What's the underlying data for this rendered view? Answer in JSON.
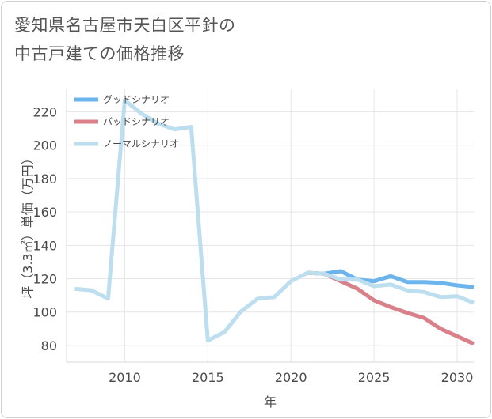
{
  "title": {
    "line1": "愛知県名古屋市天白区平針の",
    "line2": "中古戸建ての価格推移"
  },
  "chart_data": {
    "type": "line",
    "xlabel": "年",
    "ylabel": "坪（3.3㎡）単価（万円）",
    "xlim": [
      2006.5,
      2031
    ],
    "ylim": [
      70,
      234
    ],
    "xticks": [
      2010,
      2015,
      2020,
      2025,
      2030
    ],
    "yticks": [
      80,
      100,
      120,
      140,
      160,
      180,
      200,
      220
    ],
    "legend_position": "top-left",
    "series": [
      {
        "name": "グッドシナリオ",
        "color": "#6cb4ec",
        "x": [
          2021,
          2022,
          2023,
          2024,
          2025,
          2026,
          2027,
          2028,
          2029,
          2030,
          2031
        ],
        "values": [
          123.5,
          123,
          124.5,
          119.5,
          118.5,
          121.5,
          118,
          118,
          117.5,
          116,
          115
        ]
      },
      {
        "name": "バッドシナリオ",
        "color": "#d9808a",
        "x": [
          2021,
          2022,
          2023,
          2024,
          2025,
          2026,
          2027,
          2028,
          2029,
          2030,
          2031
        ],
        "values": [
          123.5,
          123,
          118.5,
          114,
          107,
          103,
          99.5,
          96.5,
          90,
          85.5,
          81
        ]
      },
      {
        "name": "ノーマルシナリオ",
        "color": "#bcdeee",
        "x": [
          2007,
          2008,
          2009,
          2010,
          2011,
          2012,
          2013,
          2014,
          2015,
          2016,
          2017,
          2018,
          2019,
          2020,
          2021,
          2022,
          2023,
          2024,
          2025,
          2026,
          2027,
          2028,
          2029,
          2030,
          2031
        ],
        "values": [
          114,
          113,
          108,
          227,
          219,
          213,
          209.5,
          211,
          83,
          88,
          100.5,
          108,
          109,
          118.5,
          123.5,
          123,
          119.5,
          119.5,
          115.5,
          116.5,
          113,
          112,
          109,
          109.5,
          105.5
        ]
      }
    ]
  }
}
